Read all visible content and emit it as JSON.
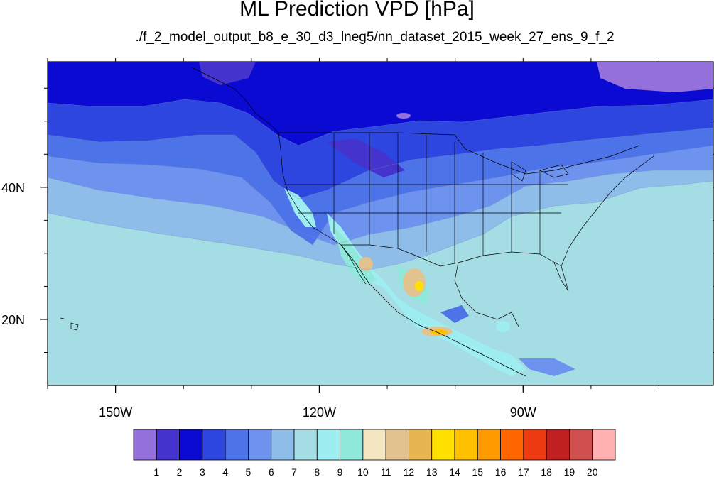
{
  "title": "ML Prediction VPD [hPa]",
  "subtitle": "./f_2_model_output_b8_e_30_d3_lneg5/nn_dataset_2015_week_27_ens_9_f_2",
  "map": {
    "lon_range": [
      -160,
      -62
    ],
    "lat_range": [
      10,
      59
    ],
    "x_ticks": [
      {
        "lon": -150,
        "label": "150W"
      },
      {
        "lon": -120,
        "label": "120W"
      },
      {
        "lon": -90,
        "label": "90W"
      }
    ],
    "y_ticks": [
      {
        "lat": 20,
        "label": "20N"
      },
      {
        "lat": 40,
        "label": "40N"
      }
    ]
  },
  "colorbar": {
    "labels": [
      "1",
      "2",
      "3",
      "4",
      "5",
      "6",
      "7",
      "8",
      "9",
      "10",
      "11",
      "12",
      "13",
      "14",
      "15",
      "16",
      "17",
      "18",
      "19",
      "20"
    ],
    "colors": [
      "#9370db",
      "#4433cc",
      "#0a0ad2",
      "#2e46e0",
      "#4c74e8",
      "#6d93ee",
      "#8dbde8",
      "#a5dde5",
      "#9eedf0",
      "#8fe8da",
      "#f3e6c0",
      "#e2c390",
      "#e8b650",
      "#ffe000",
      "#ffc000",
      "#ff9a00",
      "#ff6600",
      "#ee3a10",
      "#c02020",
      "#d05050",
      "#ffb0b0"
    ]
  }
}
